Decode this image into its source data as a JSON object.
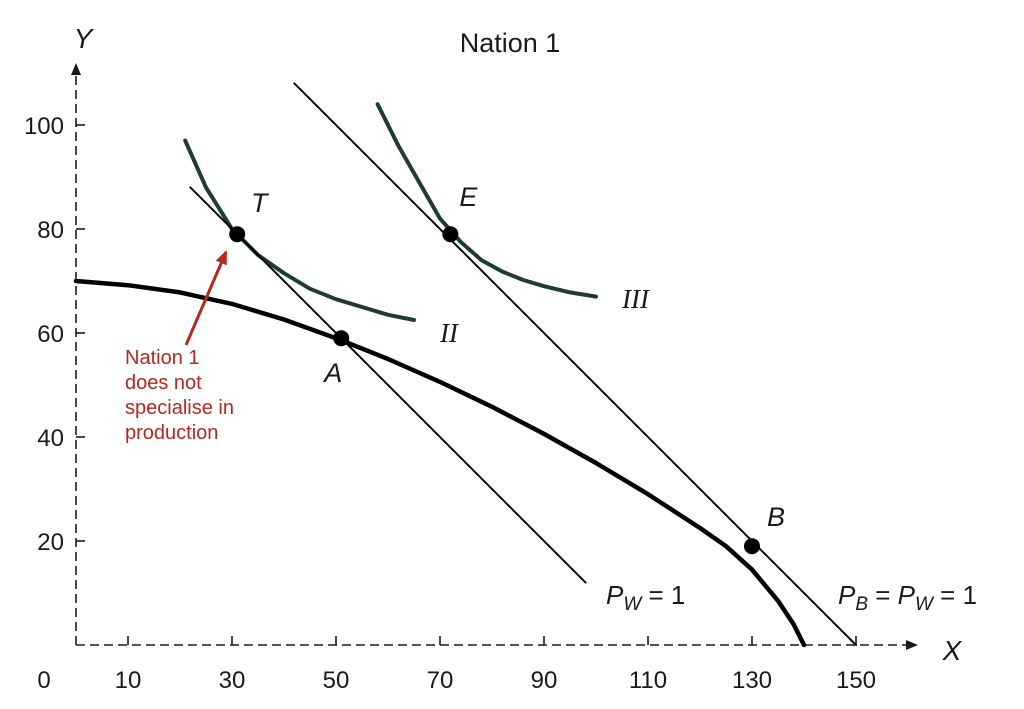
{
  "chart_data": {
    "type": "line",
    "title": "Nation 1",
    "xlabel": "X",
    "ylabel": "Y",
    "origin_label": "0",
    "x_ticks": [
      10,
      30,
      50,
      70,
      90,
      110,
      130,
      150
    ],
    "y_ticks": [
      20,
      40,
      60,
      80,
      100
    ],
    "xlim": [
      0,
      160
    ],
    "ylim": [
      0,
      110
    ],
    "grid": false,
    "series": [
      {
        "name": "",
        "role": "production possibilities frontier",
        "color": "#000000",
        "x": [
          0,
          10,
          20,
          30,
          40,
          50,
          60,
          70,
          80,
          90,
          100,
          110,
          120,
          125,
          130,
          135,
          138,
          140
        ],
        "y": [
          70,
          69.2,
          67.8,
          65.6,
          62.6,
          59,
          55,
          50.6,
          45.8,
          40.6,
          35,
          29,
          22.5,
          19,
          14.5,
          8.5,
          4,
          0
        ]
      },
      {
        "name": "II",
        "role": "community indifference curve",
        "color": "#1f3d2c",
        "x": [
          21,
          25,
          30,
          35,
          40,
          45,
          50,
          55,
          60,
          65
        ],
        "y": [
          97,
          88,
          80,
          75,
          71.5,
          68.5,
          66.5,
          65,
          63.5,
          62.5
        ]
      },
      {
        "name": "III",
        "role": "community indifference curve",
        "color": "#1f3d2c",
        "x": [
          58,
          62,
          66,
          70,
          74,
          78,
          82,
          86,
          90,
          95,
          100
        ],
        "y": [
          104,
          96,
          89,
          82,
          77.5,
          74,
          71.8,
          70.2,
          69,
          67.8,
          67
        ]
      },
      {
        "name": "P_W = 1",
        "role": "price line",
        "color": "#000000",
        "x": [
          22,
          98
        ],
        "y": [
          88,
          12
        ]
      },
      {
        "name": "P_B = P_W = 1",
        "role": "price line",
        "color": "#000000",
        "x": [
          42,
          150
        ],
        "y": [
          108,
          0
        ]
      }
    ],
    "points": [
      {
        "label": "T",
        "x": 31,
        "y": 79
      },
      {
        "label": "A",
        "x": 51,
        "y": 59
      },
      {
        "label": "E",
        "x": 72,
        "y": 79
      },
      {
        "label": "B",
        "x": 130,
        "y": 19
      }
    ],
    "line_labels": [
      {
        "series": "P_W = 1",
        "parts": [
          {
            "t": "P",
            "style": "italic"
          },
          {
            "t": "W",
            "style": "italic-sub"
          },
          {
            "t": " = 1",
            "style": "normal"
          }
        ]
      },
      {
        "series": "P_B = P_W = 1",
        "parts": [
          {
            "t": "P",
            "style": "italic"
          },
          {
            "t": "B",
            "style": "italic-sub"
          },
          {
            "t": " = ",
            "style": "normal"
          },
          {
            "t": "P",
            "style": "italic"
          },
          {
            "t": "W",
            "style": "italic-sub"
          },
          {
            "t": " = 1",
            "style": "normal"
          }
        ]
      }
    ],
    "annotation": {
      "lines": [
        "Nation 1",
        "does not",
        "specialise in",
        "production"
      ],
      "color": "#b5281f",
      "points_to": "T"
    }
  }
}
